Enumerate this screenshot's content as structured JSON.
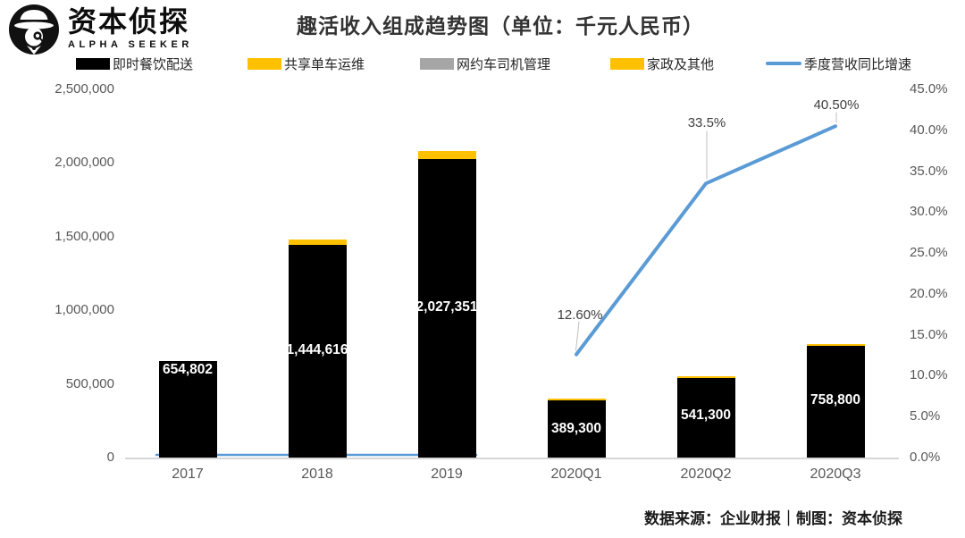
{
  "header": {
    "brand_name": "资本侦探",
    "brand_sub": "ALPHA SEEKER",
    "title": "趣活收入组成趋势图（单位：千元人民币）"
  },
  "footer": {
    "credit": "数据来源：企业财报｜制图：资本侦探"
  },
  "colors": {
    "bar_black": "#000000",
    "series_yellow": "#FFC000",
    "series_gray": "#A6A6A6",
    "line_blue": "#5B9BD5",
    "axis_text": "#595959",
    "axis_line": "#D6D6D6",
    "leader_line": "#BFBFBF",
    "pct_label": "#404040"
  },
  "chart_data": {
    "type": "bar",
    "subtype": "stacked-bars-with-secondary-axis-line",
    "title": "趣活收入组成趋势图（单位：千元人民币）",
    "categories": [
      "2017",
      "2018",
      "2019",
      "2020Q1",
      "2020Q2",
      "2020Q3"
    ],
    "series": [
      {
        "name": "即时餐饮配送",
        "type": "bar",
        "color": "#000000",
        "values": [
          654802,
          1444616,
          2027351,
          389300,
          541300,
          758800
        ],
        "data_labels": [
          "654,802",
          "1,444,616",
          "2,027,351",
          "389,300",
          "541,300",
          "758,800"
        ]
      },
      {
        "name": "共享单车运维",
        "type": "bar",
        "color": "#FFC000",
        "values_estimated": [
          0,
          35000,
          52000,
          11000,
          12000,
          14000
        ]
      },
      {
        "name": "网约车司机管理",
        "type": "bar",
        "color": "#A6A6A6",
        "values_estimated": [
          0,
          0,
          0,
          0,
          0,
          0
        ]
      },
      {
        "name": "家政及其他",
        "type": "bar",
        "color": "#FFC000",
        "values_estimated": [
          0,
          0,
          0,
          0,
          0,
          0
        ]
      },
      {
        "name": "季度营收同比增速",
        "type": "line",
        "axis": "right",
        "color": "#5B9BD5",
        "values_pct": [
          0,
          0,
          0,
          12.6,
          33.5,
          40.5
        ],
        "point_labels": [
          null,
          null,
          null,
          "12.60%",
          "33.5%",
          "40.50%"
        ]
      }
    ],
    "left_axis": {
      "ticks": [
        "2,500,000",
        "2,000,000",
        "1,500,000",
        "1,000,000",
        "500,000",
        "0"
      ],
      "min": 0,
      "max": 2500000
    },
    "right_axis": {
      "ticks": [
        "45.0%",
        "40.0%",
        "35.0%",
        "30.0%",
        "25.0%",
        "20.0%",
        "15.0%",
        "10.0%",
        "5.0%",
        "0.0%"
      ],
      "min": 0,
      "max": 45
    },
    "grid": false,
    "legend_position": "top",
    "xlabel": "",
    "ylabel": ""
  }
}
